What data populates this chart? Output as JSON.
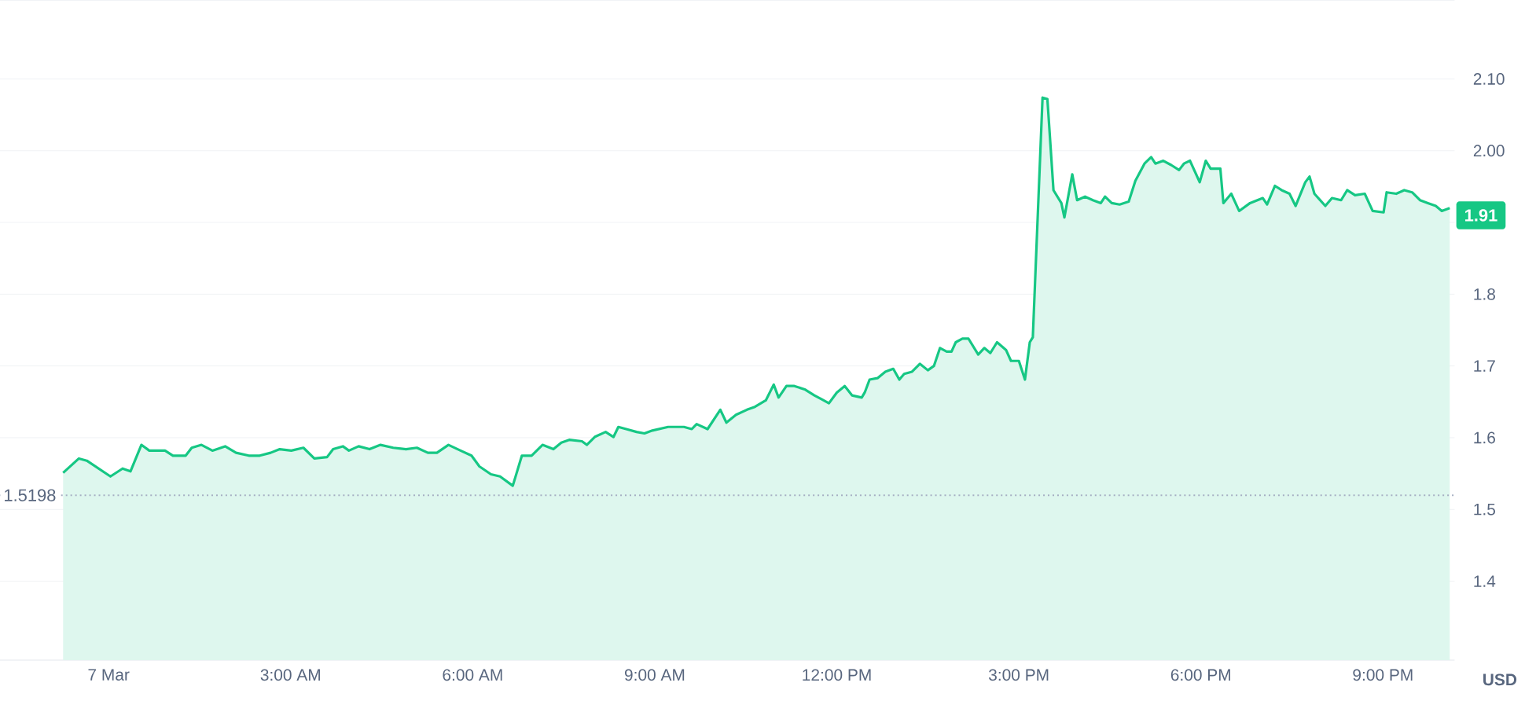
{
  "chart_data": {
    "type": "area",
    "ylabel": "USD",
    "xlim": [
      -1.79,
      22.18
    ],
    "ylim": [
      1.29,
      2.21
    ],
    "xticks": [
      {
        "value": 0,
        "label": "7 Mar"
      },
      {
        "value": 3,
        "label": "3:00 AM"
      },
      {
        "value": 6,
        "label": "6:00 AM"
      },
      {
        "value": 9,
        "label": "9:00 AM"
      },
      {
        "value": 12,
        "label": "12:00 PM"
      },
      {
        "value": 15,
        "label": "3:00 PM"
      },
      {
        "value": 18,
        "label": "6:00 PM"
      },
      {
        "value": 21,
        "label": "9:00 PM"
      }
    ],
    "yticks": [
      1.4,
      1.5,
      1.6,
      1.7,
      1.8,
      {
        "value": 1.9,
        "label": null
      },
      {
        "value": 2.0,
        "label": "2.00"
      },
      {
        "value": 2.1,
        "label": "2.10"
      }
    ],
    "grid": "y",
    "marker": "none",
    "line_style": "solid",
    "ref_lines": [
      {
        "axis": "y",
        "value": 1.5198,
        "label": "1.5198",
        "color": "#a6b0c3",
        "line_style": "dotted"
      }
    ],
    "annotations": [
      {
        "text": "1.91",
        "x": 22.1,
        "y": 1.91
      }
    ],
    "series": [
      {
        "color": "#16c784",
        "x": [
          -0.75,
          -0.49,
          -0.36,
          0.03,
          0.23,
          0.36,
          0.54,
          0.67,
          0.93,
          1.06,
          1.27,
          1.37,
          1.53,
          1.71,
          1.92,
          2.1,
          2.31,
          2.49,
          2.67,
          2.82,
          3.01,
          3.21,
          3.39,
          3.6,
          3.7,
          3.86,
          3.96,
          4.12,
          4.3,
          4.48,
          4.69,
          4.9,
          5.08,
          5.26,
          5.41,
          5.6,
          5.8,
          5.98,
          6.11,
          6.3,
          6.45,
          6.66,
          6.81,
          6.97,
          7.15,
          7.33,
          7.46,
          7.59,
          7.8,
          7.88,
          8.01,
          8.19,
          8.32,
          8.4,
          8.53,
          8.7,
          8.83,
          8.96,
          9.22,
          9.48,
          9.61,
          9.69,
          9.87,
          10.08,
          10.18,
          10.34,
          10.52,
          10.65,
          10.83,
          10.96,
          11.04,
          11.17,
          11.3,
          11.48,
          11.63,
          11.74,
          11.87,
          12.0,
          12.13,
          12.25,
          12.41,
          12.46,
          12.54,
          12.67,
          12.8,
          12.93,
          13.03,
          13.11,
          13.24,
          13.37,
          13.5,
          13.6,
          13.7,
          13.81,
          13.89,
          13.96,
          14.07,
          14.17,
          14.33,
          14.43,
          14.53,
          14.64,
          14.79,
          14.87,
          15.0,
          15.1,
          15.18,
          15.23,
          15.39,
          15.47,
          15.57,
          15.7,
          15.75,
          15.88,
          15.96,
          16.09,
          16.22,
          16.35,
          16.42,
          16.53,
          16.66,
          16.81,
          16.92,
          17.07,
          17.18,
          17.25,
          17.38,
          17.51,
          17.64,
          17.72,
          17.82,
          17.98,
          18.08,
          18.16,
          18.32,
          18.37,
          18.5,
          18.63,
          18.81,
          19.02,
          19.09,
          19.22,
          19.33,
          19.46,
          19.56,
          19.72,
          19.79,
          19.87,
          20.05,
          20.16,
          20.31,
          20.41,
          20.54,
          20.7,
          20.83,
          21.01,
          21.06,
          21.22,
          21.35,
          21.48,
          21.61,
          21.74,
          21.87,
          21.97,
          22.1
        ],
        "values": [
          1.551,
          1.571,
          1.568,
          1.546,
          1.557,
          1.553,
          1.59,
          1.582,
          1.582,
          1.575,
          1.575,
          1.586,
          1.59,
          1.582,
          1.588,
          1.579,
          1.575,
          1.575,
          1.579,
          1.584,
          1.582,
          1.586,
          1.571,
          1.573,
          1.584,
          1.588,
          1.582,
          1.588,
          1.584,
          1.59,
          1.586,
          1.584,
          1.586,
          1.579,
          1.579,
          1.59,
          1.582,
          1.575,
          1.56,
          1.549,
          1.546,
          1.533,
          1.575,
          1.575,
          1.59,
          1.584,
          1.593,
          1.597,
          1.595,
          1.59,
          1.601,
          1.608,
          1.601,
          1.615,
          1.612,
          1.608,
          1.606,
          1.61,
          1.615,
          1.615,
          1.612,
          1.619,
          1.612,
          1.639,
          1.621,
          1.632,
          1.639,
          1.643,
          1.652,
          1.674,
          1.656,
          1.672,
          1.672,
          1.667,
          1.659,
          1.654,
          1.648,
          1.663,
          1.672,
          1.659,
          1.656,
          1.663,
          1.681,
          1.683,
          1.692,
          1.696,
          1.681,
          1.689,
          1.692,
          1.703,
          1.694,
          1.7,
          1.725,
          1.72,
          1.72,
          1.733,
          1.738,
          1.738,
          1.716,
          1.725,
          1.718,
          1.733,
          1.722,
          1.707,
          1.707,
          1.681,
          1.733,
          1.74,
          2.074,
          2.072,
          1.945,
          1.927,
          1.907,
          1.967,
          1.931,
          1.936,
          1.931,
          1.927,
          1.936,
          1.927,
          1.925,
          1.929,
          1.958,
          1.982,
          1.991,
          1.982,
          1.986,
          1.98,
          1.973,
          1.982,
          1.986,
          1.956,
          1.986,
          1.975,
          1.975,
          1.927,
          1.94,
          1.916,
          1.927,
          1.934,
          1.925,
          1.951,
          1.945,
          1.94,
          1.923,
          1.956,
          1.964,
          1.94,
          1.923,
          1.934,
          1.931,
          1.945,
          1.938,
          1.94,
          1.916,
          1.914,
          1.942,
          1.94,
          1.945,
          1.942,
          1.931,
          1.927,
          1.923,
          1.916,
          1.92
        ]
      }
    ]
  }
}
